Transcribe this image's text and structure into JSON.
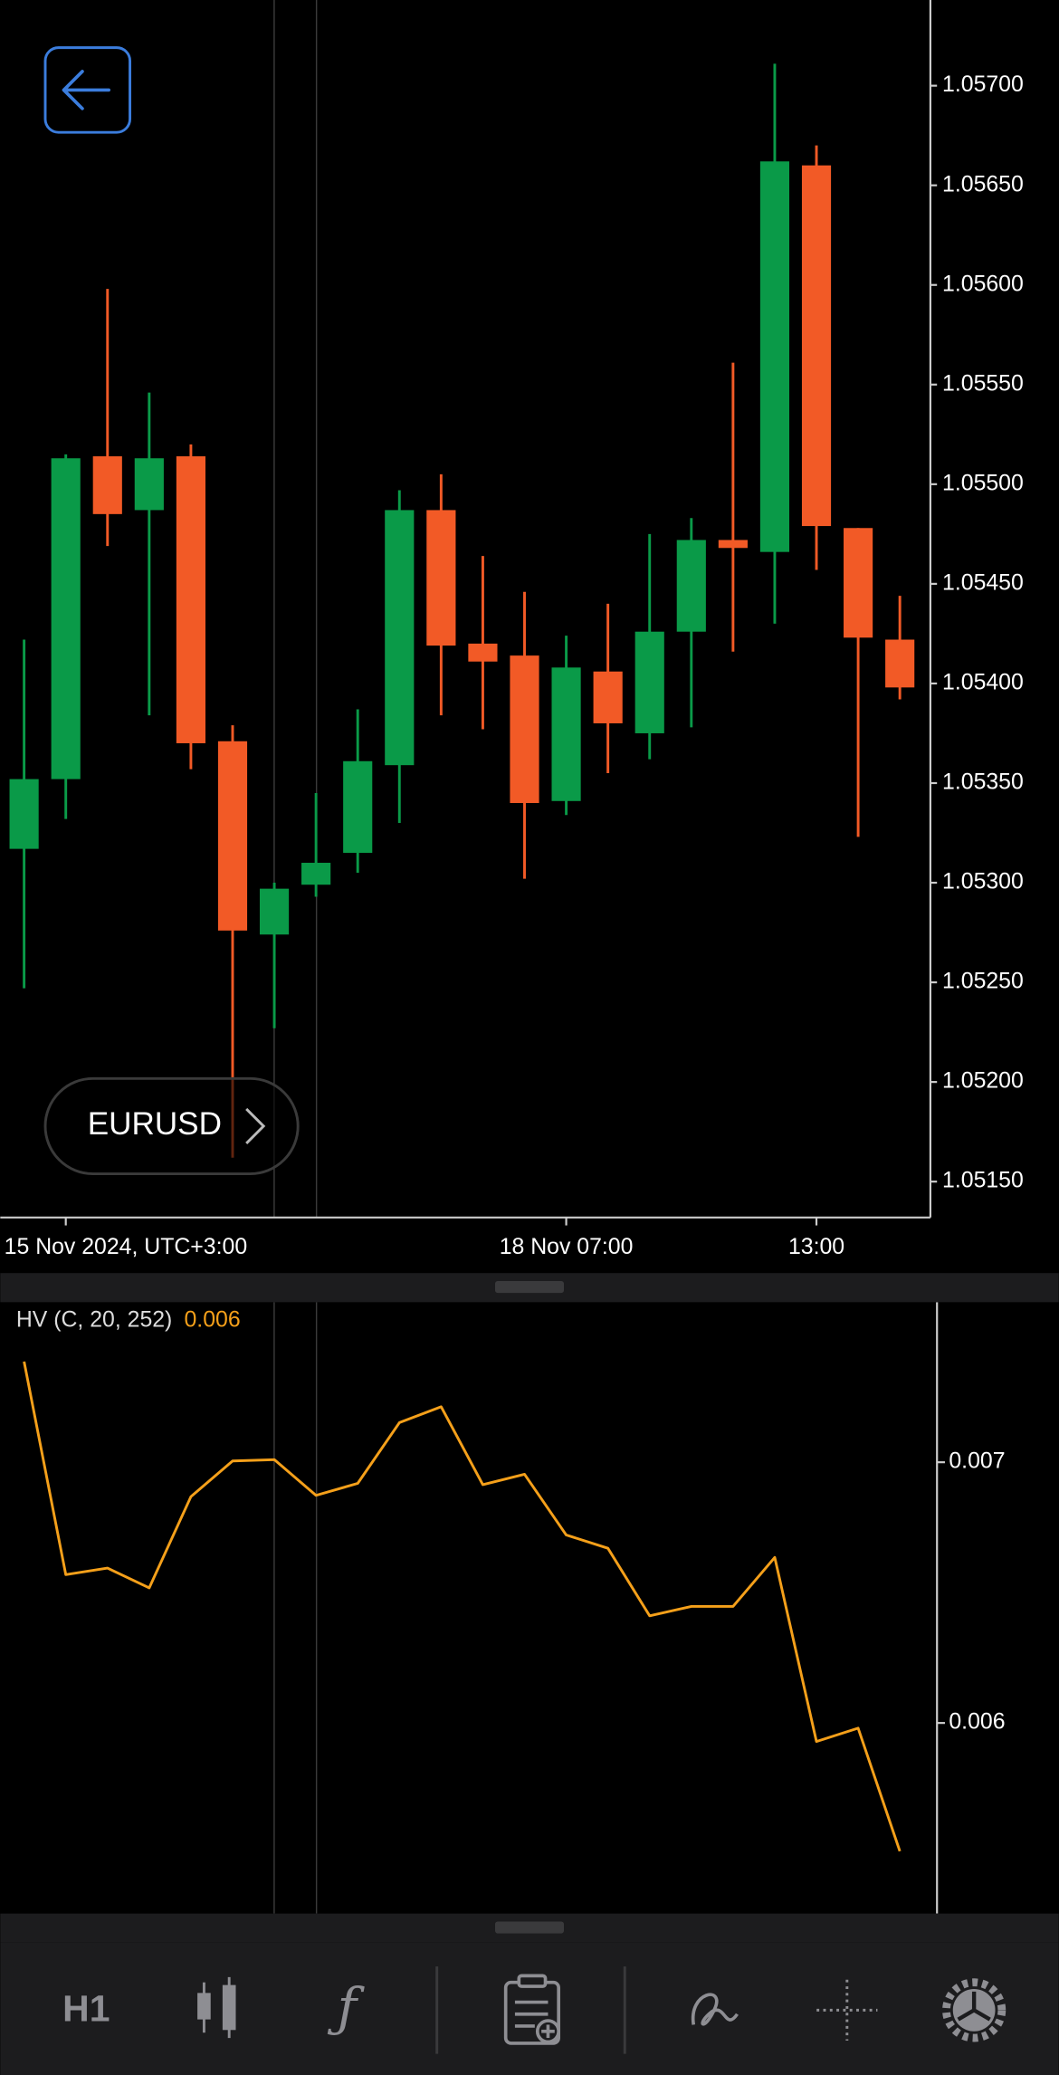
{
  "ui": {
    "symbol": "EURUSD",
    "timeframe": "H1"
  },
  "chart_data": [
    {
      "type": "candlestick",
      "categories": [
        null,
        "15 Nov 2024, UTC+3:00",
        null,
        null,
        null,
        null,
        null,
        null,
        null,
        null,
        null,
        null,
        null,
        "18 Nov 07:00",
        null,
        null,
        null,
        null,
        null,
        "13:00",
        null,
        null
      ],
      "open": [
        1.05317,
        1.05352,
        1.05514,
        1.05487,
        1.05514,
        1.05371,
        1.05274,
        1.05299,
        1.05315,
        1.05359,
        1.05487,
        1.0542,
        1.05414,
        1.05341,
        1.05406,
        1.05375,
        1.05426,
        1.05472,
        1.05466,
        1.0566,
        1.05478,
        1.05422
      ],
      "high": [
        1.05422,
        1.05515,
        1.05598,
        1.05546,
        1.0552,
        1.05379,
        1.053,
        1.05345,
        1.05387,
        1.05497,
        1.05505,
        1.05464,
        1.05446,
        1.05424,
        1.0544,
        1.05475,
        1.05483,
        1.05561,
        1.05711,
        1.0567,
        1.05478,
        1.05444
      ],
      "low": [
        1.05247,
        1.05332,
        1.05469,
        1.05384,
        1.05357,
        1.05162,
        1.05227,
        1.05293,
        1.05305,
        1.0533,
        1.05384,
        1.05377,
        1.05302,
        1.05334,
        1.05355,
        1.05362,
        1.05378,
        1.05416,
        1.0543,
        1.05457,
        1.05323,
        1.05392
      ],
      "close": [
        1.05352,
        1.05513,
        1.05485,
        1.05513,
        1.0537,
        1.05276,
        1.05297,
        1.0531,
        1.05361,
        1.05487,
        1.05419,
        1.05411,
        1.0534,
        1.05408,
        1.0538,
        1.05426,
        1.05472,
        1.05468,
        1.05662,
        1.05479,
        1.05423,
        1.05398
      ],
      "up_color": "#0a9a48",
      "down_color": "#f25a26",
      "ylim": [
        1.05132,
        1.05743
      ],
      "yticks": [
        {
          "value": 1.057,
          "label": "1.05700"
        },
        {
          "value": 1.0565,
          "label": "1.05650"
        },
        {
          "value": 1.056,
          "label": "1.05600"
        },
        {
          "value": 1.0555,
          "label": "1.05550"
        },
        {
          "value": 1.055,
          "label": "1.05500"
        },
        {
          "value": 1.0545,
          "label": "1.05450"
        },
        {
          "value": 1.054,
          "label": "1.05400"
        },
        {
          "value": 1.0535,
          "label": "1.05350"
        },
        {
          "value": 1.053,
          "label": "1.05300"
        },
        {
          "value": 1.0525,
          "label": "1.05250"
        },
        {
          "value": 1.052,
          "label": "1.05200"
        },
        {
          "value": 1.0515,
          "label": "1.05150"
        }
      ]
    },
    {
      "type": "line",
      "title": "HV (C, 20, 252)",
      "last_value": 0.006,
      "series": [
        {
          "color": "#f5a01a",
          "values": [
            0.007386,
            0.006569,
            0.006594,
            0.006518,
            0.006868,
            0.007005,
            0.00701,
            0.006873,
            0.006919,
            0.007152,
            0.007213,
            0.006914,
            0.006954,
            0.006721,
            0.00667,
            0.006411,
            0.006447,
            0.006447,
            0.006635,
            0.005929,
            0.00598,
            0.005508
          ]
        }
      ],
      "ylim": [
        0.005269,
        0.007614
      ],
      "yticks": [
        0.007,
        0.006
      ]
    }
  ]
}
